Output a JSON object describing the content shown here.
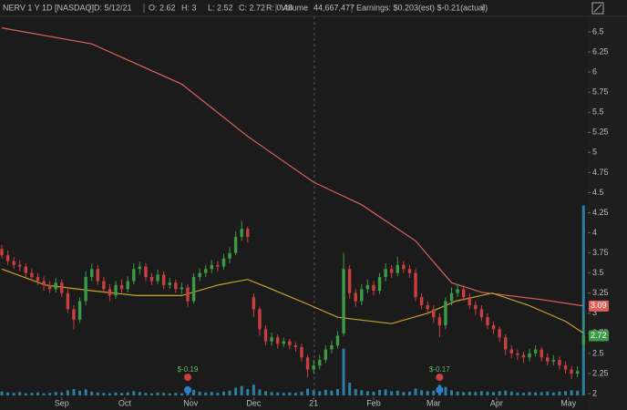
{
  "chart_data": {
    "type": "candlestick",
    "title": "NERV 1 Y 1D [NASDAQ]",
    "info": [
      "D: 5/12/21",
      "O: 2.62",
      "H: 3",
      "L: 2.52",
      "C: 2.72",
      "R: 0.48",
      "Volume",
      "44,667,477",
      "Earnings: $0.203(est) $-0.21(actual)"
    ],
    "up_color": "#3d9a46",
    "down_color": "#c9403f",
    "volume_color": "#2b7fa3",
    "open": [
      3.8,
      3.72,
      3.65,
      3.6,
      3.58,
      3.5,
      3.45,
      3.4,
      3.35,
      3.3,
      3.38,
      3.25,
      3.05,
      2.92,
      3.15,
      3.45,
      3.55,
      3.4,
      3.3,
      3.22,
      3.35,
      3.3,
      3.4,
      3.55,
      3.58,
      3.45,
      3.4,
      3.48,
      3.35,
      3.38,
      3.3,
      3.32,
      3.15,
      3.45,
      3.5,
      3.55,
      3.6,
      3.58,
      3.68,
      3.75,
      3.95,
      4.05,
      3.2,
      3.05,
      2.8,
      2.65,
      2.7,
      2.62,
      2.65,
      2.6,
      2.58,
      2.45,
      2.3,
      2.35,
      2.42,
      2.55,
      2.6,
      2.75,
      3.55,
      3.25,
      3.15,
      3.3,
      3.35,
      3.28,
      3.45,
      3.55,
      3.5,
      3.6,
      3.55,
      3.5,
      3.2,
      3.1,
      3.05,
      2.95,
      2.85,
      3.15,
      3.25,
      3.3,
      3.2,
      3.1,
      3.05,
      2.95,
      2.85,
      2.8,
      2.7,
      2.55,
      2.5,
      2.48,
      2.45,
      2.5,
      2.55,
      2.45,
      2.4,
      2.42,
      2.35,
      2.3,
      2.25,
      2.62
    ],
    "high": [
      3.85,
      3.78,
      3.7,
      3.66,
      3.62,
      3.56,
      3.5,
      3.46,
      3.4,
      3.44,
      3.42,
      3.3,
      3.1,
      3.2,
      3.52,
      3.62,
      3.6,
      3.45,
      3.36,
      3.4,
      3.42,
      3.46,
      3.62,
      3.64,
      3.62,
      3.5,
      3.54,
      3.52,
      3.44,
      3.42,
      3.38,
      3.36,
      3.5,
      3.56,
      3.6,
      3.66,
      3.65,
      3.74,
      3.82,
      4.02,
      4.15,
      4.08,
      3.25,
      3.08,
      2.85,
      2.76,
      2.74,
      2.7,
      2.68,
      2.64,
      2.62,
      2.48,
      2.42,
      2.48,
      2.6,
      2.66,
      2.78,
      3.75,
      3.6,
      3.3,
      3.36,
      3.42,
      3.4,
      3.5,
      3.62,
      3.6,
      3.7,
      3.65,
      3.6,
      3.55,
      3.25,
      3.15,
      3.1,
      3.0,
      3.2,
      3.32,
      3.36,
      3.35,
      3.25,
      3.15,
      3.1,
      3.0,
      2.9,
      2.84,
      2.74,
      2.6,
      2.55,
      2.52,
      2.56,
      2.6,
      2.58,
      2.5,
      2.48,
      2.46,
      2.4,
      2.34,
      2.34,
      3.0
    ],
    "low": [
      3.68,
      3.6,
      3.55,
      3.52,
      3.45,
      3.4,
      3.35,
      3.28,
      3.25,
      3.26,
      3.2,
      3.0,
      2.8,
      2.88,
      3.1,
      3.4,
      3.35,
      3.25,
      3.15,
      3.18,
      3.25,
      3.26,
      3.36,
      3.48,
      3.4,
      3.35,
      3.36,
      3.3,
      3.3,
      3.25,
      3.24,
      3.08,
      3.12,
      3.4,
      3.45,
      3.5,
      3.52,
      3.54,
      3.62,
      3.72,
      3.9,
      3.88,
      2.95,
      2.72,
      2.6,
      2.6,
      2.56,
      2.58,
      2.55,
      2.52,
      2.4,
      2.2,
      2.25,
      2.3,
      2.38,
      2.5,
      2.56,
      2.72,
      3.18,
      3.08,
      3.1,
      3.25,
      3.22,
      3.24,
      3.4,
      3.44,
      3.46,
      3.5,
      3.44,
      3.15,
      3.05,
      2.98,
      2.88,
      2.7,
      2.8,
      3.1,
      3.2,
      3.15,
      3.05,
      2.98,
      2.9,
      2.8,
      2.74,
      2.64,
      2.48,
      2.44,
      2.42,
      2.38,
      2.4,
      2.46,
      2.4,
      2.35,
      2.35,
      2.3,
      2.25,
      2.18,
      2.2,
      2.52
    ],
    "close": [
      3.72,
      3.65,
      3.6,
      3.58,
      3.5,
      3.45,
      3.4,
      3.35,
      3.3,
      3.38,
      3.25,
      3.05,
      2.92,
      3.15,
      3.45,
      3.55,
      3.4,
      3.3,
      3.22,
      3.35,
      3.3,
      3.4,
      3.55,
      3.58,
      3.45,
      3.4,
      3.48,
      3.35,
      3.38,
      3.3,
      3.32,
      3.15,
      3.45,
      3.5,
      3.55,
      3.6,
      3.58,
      3.68,
      3.75,
      3.95,
      4.05,
      3.95,
      3.05,
      2.8,
      2.65,
      2.7,
      2.62,
      2.65,
      2.6,
      2.58,
      2.45,
      2.3,
      2.35,
      2.42,
      2.55,
      2.6,
      2.72,
      3.55,
      3.25,
      3.15,
      3.3,
      3.35,
      3.28,
      3.45,
      3.55,
      3.5,
      3.6,
      3.55,
      3.5,
      3.2,
      3.1,
      3.05,
      2.95,
      2.85,
      3.15,
      3.25,
      3.3,
      3.2,
      3.1,
      3.05,
      2.95,
      2.85,
      2.8,
      2.7,
      2.55,
      2.5,
      2.48,
      2.45,
      2.5,
      2.55,
      2.45,
      2.4,
      2.42,
      2.35,
      2.3,
      2.25,
      2.28,
      2.72
    ],
    "volume": [
      900000,
      700000,
      600000,
      800000,
      500000,
      600000,
      700000,
      500000,
      600000,
      800000,
      700000,
      1200000,
      1500000,
      1100000,
      1400000,
      900000,
      700000,
      600000,
      500000,
      700000,
      600000,
      700000,
      1000000,
      800000,
      600000,
      500000,
      700000,
      600000,
      500000,
      600000,
      500000,
      800000,
      1300000,
      900000,
      700000,
      800000,
      600000,
      900000,
      1100000,
      1800000,
      2200000,
      1500000,
      2500000,
      1400000,
      1000000,
      800000,
      700000,
      600000,
      700000,
      600000,
      900000,
      1600000,
      1200000,
      1000000,
      1300000,
      1100000,
      1500000,
      11000000,
      3000000,
      1500000,
      1200000,
      1000000,
      900000,
      1300000,
      1400000,
      1000000,
      1100000,
      800000,
      900000,
      1600000,
      1200000,
      1000000,
      1100000,
      2500000,
      2000000,
      1200000,
      900000,
      800000,
      900000,
      800000,
      1000000,
      900000,
      800000,
      1000000,
      1100000,
      900000,
      700000,
      600000,
      800000,
      700000,
      800000,
      900000,
      700000,
      900000,
      1000000,
      1200000,
      1100000,
      44667477
    ],
    "vlim": [
      0,
      45000000
    ],
    "moving_averages": [
      {
        "color": "#d9625a",
        "x": [
          0,
          15,
          30,
          41,
          52,
          60,
          69,
          75,
          80,
          90,
          97
        ],
        "values": [
          6.55,
          6.35,
          5.85,
          5.2,
          4.63,
          4.35,
          3.9,
          3.38,
          3.26,
          3.17,
          3.09
        ]
      },
      {
        "color": "#c9a227",
        "x": [
          0,
          7.3,
          15,
          22.5,
          30,
          36,
          41,
          45,
          51.4,
          56,
          65,
          71,
          75.7,
          81.8,
          87.8,
          94,
          97
        ],
        "values": [
          3.55,
          3.35,
          3.28,
          3.22,
          3.22,
          3.35,
          3.42,
          3.3,
          3.1,
          2.95,
          2.87,
          3.0,
          3.15,
          3.25,
          3.1,
          2.9,
          2.75
        ]
      }
    ],
    "earnings": [
      {
        "x": 31,
        "label": "$-0.19"
      },
      {
        "x": 73,
        "label": "$-0.17"
      }
    ],
    "ylim": [
      2,
      6.5
    ],
    "yticks": [
      2,
      2.25,
      2.5,
      2.75,
      3,
      3.25,
      3.5,
      3.75,
      4,
      4.25,
      4.5,
      4.75,
      5,
      5.25,
      5.5,
      5.75,
      6,
      6.25,
      6.5
    ],
    "xticks": [
      {
        "value": 10,
        "label": "Sep"
      },
      {
        "value": 20.5,
        "label": "Oct"
      },
      {
        "value": 31.5,
        "label": "Nov"
      },
      {
        "value": 42,
        "label": "Dec"
      },
      {
        "value": 52,
        "label": "21"
      },
      {
        "value": 62,
        "label": "Feb"
      },
      {
        "value": 72,
        "label": "Mar"
      },
      {
        "value": 82.5,
        "label": "Apr"
      },
      {
        "value": 94.5,
        "label": "May"
      }
    ]
  }
}
